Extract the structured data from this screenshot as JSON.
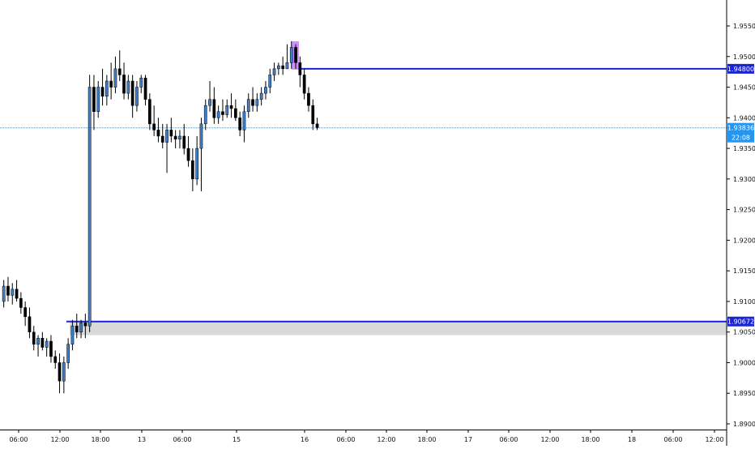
{
  "chart_data": {
    "type": "candlestick",
    "symbol_hint": "",
    "x_ticks": [
      "06:00",
      "12:00",
      "18:00",
      "13",
      "06:00",
      "15",
      "16",
      "06:00",
      "12:00",
      "18:00",
      "17",
      "06:00",
      "12:00",
      "18:00",
      "18",
      "06:00",
      "12:00"
    ],
    "y_ticks": [
      "1.95500",
      "1.95000",
      "1.94500",
      "1.94000",
      "1.93500",
      "1.93000",
      "1.92500",
      "1.92000",
      "1.91500",
      "1.91000",
      "1.90500",
      "1.90000",
      "1.89500",
      "1.89000"
    ],
    "ylim": [
      1.889,
      1.9605
    ],
    "grid": false,
    "horizontal_levels": [
      {
        "price": 1.948,
        "label": "1.94800",
        "color": "#1a24d6"
      },
      {
        "price": 1.90672,
        "label": "1.90672",
        "color": "#1a24d6"
      }
    ],
    "current_price": {
      "price": 1.93836,
      "label": "1.93836",
      "timer": "22:08",
      "color": "#2196f3"
    },
    "zones": [
      {
        "type": "support",
        "price_top": 1.90672,
        "price_bottom": 1.9045,
        "color": "#d9d9d9"
      },
      {
        "type": "highlight",
        "price_top": 1.9525,
        "price_bottom": 1.948,
        "color": "#c77dff"
      }
    ],
    "candles": [
      [
        1.91,
        1.9135,
        1.909,
        1.9125
      ],
      [
        1.9125,
        1.914,
        1.91,
        1.911
      ],
      [
        1.911,
        1.913,
        1.9095,
        1.912
      ],
      [
        1.912,
        1.9135,
        1.91,
        1.9105
      ],
      [
        1.9105,
        1.9115,
        1.908,
        1.909
      ],
      [
        1.909,
        1.91,
        1.906,
        1.9075
      ],
      [
        1.9075,
        1.909,
        1.904,
        1.905
      ],
      [
        1.905,
        1.906,
        1.902,
        1.903
      ],
      [
        1.903,
        1.9045,
        1.901,
        1.904
      ],
      [
        1.904,
        1.905,
        1.902,
        1.9025
      ],
      [
        1.9025,
        1.904,
        1.901,
        1.9035
      ],
      [
        1.9035,
        1.9045,
        1.9,
        1.901
      ],
      [
        1.901,
        1.902,
        1.899,
        1.9
      ],
      [
        1.9,
        1.9015,
        1.895,
        1.897
      ],
      [
        1.897,
        1.901,
        1.895,
        1.9
      ],
      [
        1.9,
        1.904,
        1.899,
        1.903
      ],
      [
        1.903,
        1.907,
        1.902,
        1.906
      ],
      [
        1.906,
        1.908,
        1.904,
        1.905
      ],
      [
        1.905,
        1.907,
        1.904,
        1.9065
      ],
      [
        1.9065,
        1.908,
        1.904,
        1.906
      ],
      [
        1.906,
        1.947,
        1.905,
        1.945
      ],
      [
        1.945,
        1.947,
        1.938,
        1.941
      ],
      [
        1.941,
        1.946,
        1.94,
        1.945
      ],
      [
        1.945,
        1.948,
        1.942,
        1.9435
      ],
      [
        1.9435,
        1.947,
        1.942,
        1.946
      ],
      [
        1.946,
        1.949,
        1.943,
        1.945
      ],
      [
        1.945,
        1.95,
        1.944,
        1.948
      ],
      [
        1.948,
        1.951,
        1.946,
        1.947
      ],
      [
        1.947,
        1.949,
        1.943,
        1.944
      ],
      [
        1.944,
        1.947,
        1.943,
        1.946
      ],
      [
        1.946,
        1.947,
        1.94,
        1.942
      ],
      [
        1.942,
        1.946,
        1.941,
        1.945
      ],
      [
        1.945,
        1.947,
        1.944,
        1.9465
      ],
      [
        1.9465,
        1.947,
        1.942,
        1.943
      ],
      [
        1.943,
        1.944,
        1.938,
        1.939
      ],
      [
        1.939,
        1.942,
        1.937,
        1.938
      ],
      [
        1.938,
        1.94,
        1.936,
        1.937
      ],
      [
        1.937,
        1.939,
        1.935,
        1.936
      ],
      [
        1.936,
        1.939,
        1.931,
        1.938
      ],
      [
        1.938,
        1.94,
        1.936,
        1.937
      ],
      [
        1.937,
        1.938,
        1.935,
        1.9365
      ],
      [
        1.9365,
        1.938,
        1.935,
        1.937
      ],
      [
        1.937,
        1.939,
        1.934,
        1.935
      ],
      [
        1.935,
        1.937,
        1.932,
        1.933
      ],
      [
        1.933,
        1.935,
        1.928,
        1.93
      ],
      [
        1.93,
        1.937,
        1.929,
        1.935
      ],
      [
        1.935,
        1.94,
        1.928,
        1.939
      ],
      [
        1.939,
        1.943,
        1.938,
        1.942
      ],
      [
        1.942,
        1.946,
        1.941,
        1.943
      ],
      [
        1.943,
        1.945,
        1.939,
        1.94
      ],
      [
        1.94,
        1.942,
        1.939,
        1.941
      ],
      [
        1.941,
        1.943,
        1.9395,
        1.9405
      ],
      [
        1.9405,
        1.943,
        1.94,
        1.942
      ],
      [
        1.942,
        1.944,
        1.94,
        1.9415
      ],
      [
        1.9415,
        1.943,
        1.9395,
        1.94
      ],
      [
        1.94,
        1.941,
        1.937,
        1.938
      ],
      [
        1.938,
        1.942,
        1.936,
        1.941
      ],
      [
        1.941,
        1.944,
        1.94,
        1.943
      ],
      [
        1.943,
        1.945,
        1.941,
        1.942
      ],
      [
        1.942,
        1.944,
        1.941,
        1.943
      ],
      [
        1.943,
        1.945,
        1.942,
        1.944
      ],
      [
        1.944,
        1.946,
        1.943,
        1.945
      ],
      [
        1.945,
        1.948,
        1.944,
        1.947
      ],
      [
        1.947,
        1.949,
        1.946,
        1.948
      ],
      [
        1.948,
        1.949,
        1.947,
        1.9485
      ],
      [
        1.9485,
        1.95,
        1.947,
        1.948
      ],
      [
        1.948,
        1.952,
        1.948,
        1.949
      ],
      [
        1.949,
        1.9525,
        1.948,
        1.9515
      ],
      [
        1.9515,
        1.952,
        1.948,
        1.949
      ],
      [
        1.949,
        1.95,
        1.945,
        1.947
      ],
      [
        1.947,
        1.948,
        1.943,
        1.944
      ],
      [
        1.944,
        1.945,
        1.941,
        1.942
      ],
      [
        1.942,
        1.943,
        1.938,
        1.939
      ],
      [
        1.939,
        1.94,
        1.938,
        1.9384
      ]
    ]
  }
}
